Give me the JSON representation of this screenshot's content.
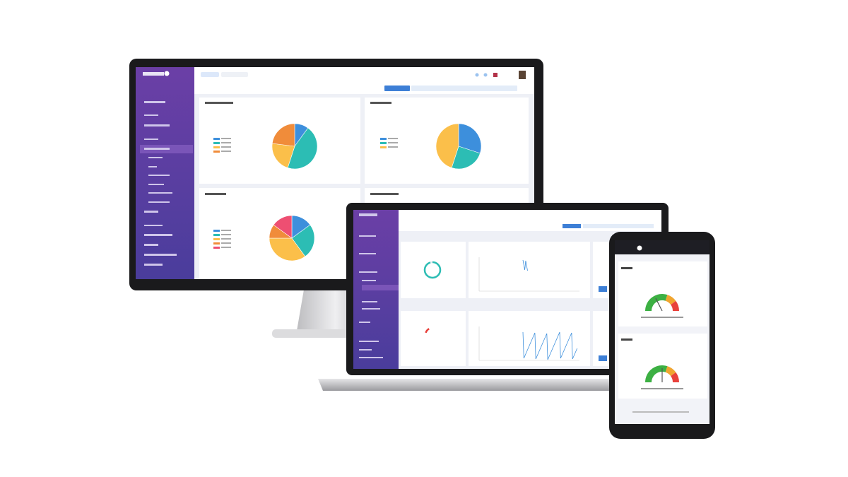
{
  "colors": {
    "sidebar_top": "#6b3fa6",
    "sidebar_bottom": "#4a3d9c",
    "accent": "#3d7fd6",
    "card_bg": "#ffffff",
    "content_bg": "#eef0f6",
    "bezel": "#1a1a1c"
  },
  "monitor": {
    "pies": [
      {
        "slices": [
          {
            "value": 10,
            "color": "#3d8fdc"
          },
          {
            "value": 45,
            "color": "#2cbdb4"
          },
          {
            "value": 22,
            "color": "#fbbf4a"
          },
          {
            "value": 23,
            "color": "#f08c3a"
          }
        ]
      },
      {
        "slices": [
          {
            "value": 30,
            "color": "#3d8fdc"
          },
          {
            "value": 25,
            "color": "#2cbdb4"
          },
          {
            "value": 45,
            "color": "#fbbf4a"
          }
        ]
      },
      {
        "slices": [
          {
            "value": 15,
            "color": "#3d8fdc"
          },
          {
            "value": 25,
            "color": "#2cbdb4"
          },
          {
            "value": 35,
            "color": "#fbbf4a"
          },
          {
            "value": 10,
            "color": "#f08c3a"
          },
          {
            "value": 15,
            "color": "#ee4f72"
          }
        ]
      }
    ]
  },
  "laptop": {
    "donut_progress": 0.95,
    "gauge_progress": 0.2
  },
  "phone": {
    "gauges": [
      {
        "needle": 0.35
      },
      {
        "needle": 0.5
      }
    ]
  }
}
